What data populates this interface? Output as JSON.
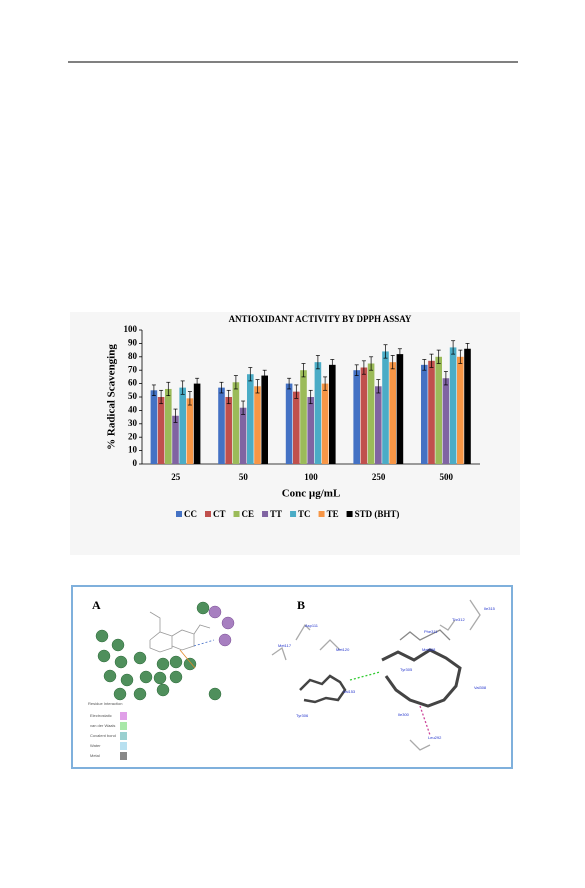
{
  "chart_data": {
    "type": "bar",
    "title": "ANTIOXIDANT ACTIVITY BY DPPH ASSAY",
    "x_label": "Conc µg/mL",
    "y_label": "% Radical Scavenging",
    "categories": [
      "25",
      "50",
      "100",
      "250",
      "500"
    ],
    "series": [
      {
        "name": "CC",
        "color": "#4472c4",
        "values": [
          55,
          57,
          60,
          70,
          74
        ],
        "errors": [
          4,
          4,
          4,
          4,
          4
        ]
      },
      {
        "name": "CT",
        "color": "#c0504d",
        "values": [
          50,
          50,
          54,
          72,
          77
        ],
        "errors": [
          5,
          5,
          5,
          5,
          5
        ]
      },
      {
        "name": "CE",
        "color": "#9bbb59",
        "values": [
          56,
          61,
          70,
          75,
          80
        ],
        "errors": [
          5,
          5,
          5,
          5,
          5
        ]
      },
      {
        "name": "TT",
        "color": "#8064a2",
        "values": [
          36,
          42,
          50,
          58,
          64
        ],
        "errors": [
          5,
          5,
          5,
          5,
          5
        ]
      },
      {
        "name": "TC",
        "color": "#4bacc6",
        "values": [
          57,
          67,
          76,
          84,
          87
        ],
        "errors": [
          5,
          5,
          5,
          5,
          5
        ]
      },
      {
        "name": "TE",
        "color": "#f79646",
        "values": [
          49,
          58,
          60,
          76,
          80
        ],
        "errors": [
          5,
          5,
          5,
          5,
          5
        ]
      },
      {
        "name": "STD (BHT)",
        "color": "#000000",
        "values": [
          60,
          66,
          74,
          82,
          86
        ],
        "errors": [
          4,
          4,
          4,
          4,
          4
        ]
      }
    ],
    "ylim": [
      0,
      100
    ],
    "yticks": [
      0,
      10,
      20,
      30,
      40,
      50,
      60,
      70,
      80,
      90,
      100
    ],
    "grid": false,
    "legend": "bottom"
  },
  "figure": {
    "panel_a": {
      "label": "A",
      "legend_title": "Residue Interaction",
      "legend_items": [
        "Electrostatic",
        "van der Waals",
        "Covalent bond",
        "Water",
        "Metal"
      ]
    },
    "panel_b": {
      "label": "B",
      "residues": [
        "Asp111",
        "Met117",
        "Met120",
        "Val153",
        "Tyr306",
        "Phe311",
        "Thr312",
        "Ile315",
        "Met308",
        "Tyr305",
        "Val308",
        "Ile300",
        "Leu292"
      ]
    }
  }
}
